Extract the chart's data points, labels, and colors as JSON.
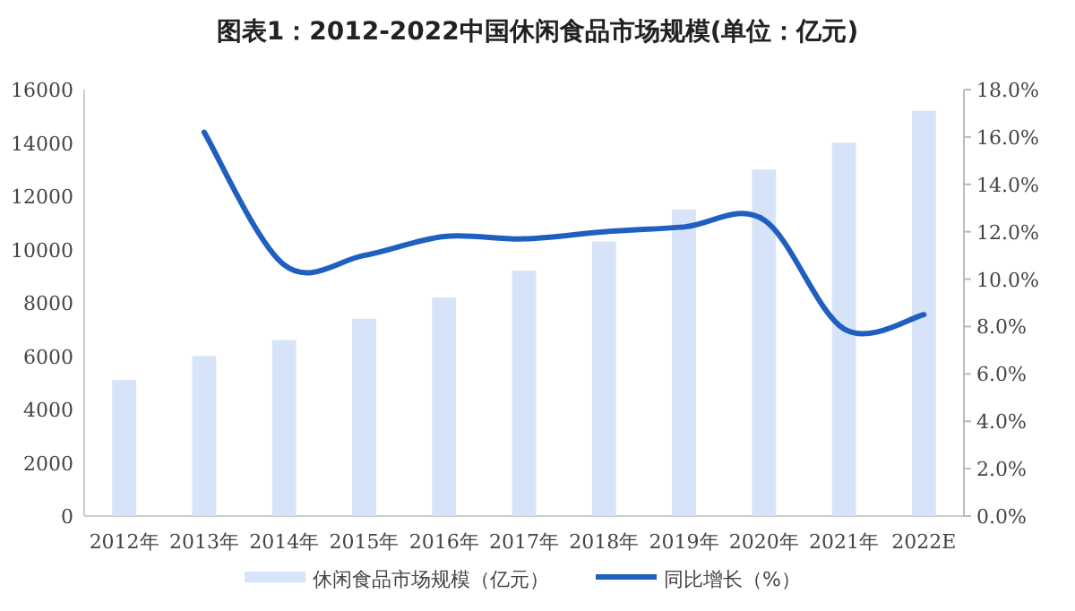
{
  "chart_data": {
    "type": "bar",
    "title": "图表1：2012-2022中国休闲食品市场规模(单位：亿元)",
    "categories": [
      "2012年",
      "2013年",
      "2014年",
      "2015年",
      "2016年",
      "2017年",
      "2018年",
      "2019年",
      "2020年",
      "2021年",
      "2022E"
    ],
    "series": [
      {
        "name": "休闲食品市场规模（亿元）",
        "color": "#d6e3f8",
        "values": [
          5100,
          6000,
          6600,
          7400,
          8200,
          9200,
          10300,
          11500,
          13000,
          14000,
          15200
        ]
      },
      {
        "name": "同比增长（%）",
        "type": "line",
        "axis": "y2",
        "color": "#1f5fbf",
        "values": [
          null,
          16.2,
          10.6,
          11.0,
          11.8,
          11.7,
          12.0,
          12.2,
          12.5,
          7.9,
          8.5
        ]
      }
    ],
    "ylim": [
      0,
      16000
    ],
    "yticks": [
      0,
      2000,
      4000,
      6000,
      8000,
      10000,
      12000,
      14000,
      16000
    ],
    "y2lim": [
      0,
      18
    ],
    "y2ticks": [
      {
        "value": 0,
        "label": "0.0%"
      },
      {
        "value": 2,
        "label": "2.0%"
      },
      {
        "value": 4,
        "label": "4.0%"
      },
      {
        "value": 6,
        "label": "6.0%"
      },
      {
        "value": 8,
        "label": "8.0%"
      },
      {
        "value": 10,
        "label": "10.0%"
      },
      {
        "value": 12,
        "label": "12.0%"
      },
      {
        "value": 14,
        "label": "14.0%"
      },
      {
        "value": 16,
        "label": "16.0%"
      },
      {
        "value": 18,
        "label": "18.0%"
      }
    ],
    "grid": false,
    "legend": "bottom",
    "marker": "none",
    "line_style": "solid"
  }
}
